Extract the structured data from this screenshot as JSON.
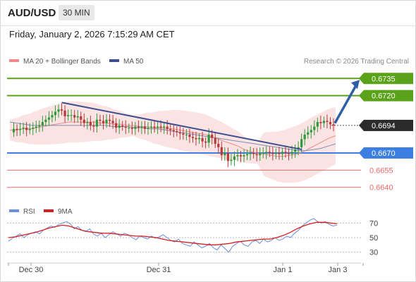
{
  "header": {
    "symbol": "AUD/USD",
    "timeframe": "30 MIN"
  },
  "datetime": "Friday, January 2, 2026 7:15:29 AM CET",
  "legend": {
    "ma20_label": "MA 20 + Bollinger Bands",
    "ma50_label": "MA 50",
    "credit": "Research © 2026 Trading Central",
    "rsi_label": "RSI",
    "rsi_ma_label": "9MA"
  },
  "colors": {
    "resistance": "#5aa21a",
    "support": "#3d7fe0",
    "lower_level": "#e86a6a",
    "ma20": "#f08a8a",
    "bollinger_fill": "#fbdada",
    "ma50": "#7b8fb3",
    "trendline": "#3d4f8e",
    "arrow": "#2e5fa6",
    "candle_up": "#2e9b3a",
    "candle_down": "#b53a3a",
    "rsi": "#6b8fe0",
    "rsi_ma": "#d42020"
  },
  "chart_data": [
    {
      "type": "candlestick",
      "x_ticks": [
        "Dec 30",
        "Dec 31",
        "Jan 1",
        "Jan 3"
      ],
      "ylim": [
        0.663,
        0.6745
      ],
      "current_price": "0.6694",
      "levels": [
        {
          "label": "0.6735",
          "value": 0.6735,
          "kind": "resistance"
        },
        {
          "label": "0.6720",
          "value": 0.672,
          "kind": "resistance"
        },
        {
          "label": "0.6670",
          "value": 0.667,
          "kind": "support"
        },
        {
          "label": "0.6655",
          "value": 0.6655,
          "kind": "lower"
        },
        {
          "label": "0.6640",
          "value": 0.664,
          "kind": "lower"
        }
      ],
      "close_path": [
        0.6688,
        0.6691,
        0.669,
        0.6691,
        0.6692,
        0.669,
        0.6691,
        0.6692,
        0.6693,
        0.6694,
        0.6697,
        0.6699,
        0.6701,
        0.6703,
        0.6706,
        0.6708,
        0.6707,
        0.6702,
        0.6703,
        0.6703,
        0.6701,
        0.6702,
        0.6699,
        0.6696,
        0.6697,
        0.6694,
        0.6693,
        0.6699,
        0.6698,
        0.6696,
        0.6699,
        0.6698,
        0.6696,
        0.6692,
        0.6694,
        0.6693,
        0.6692,
        0.6692,
        0.6691,
        0.6693,
        0.6692,
        0.6693,
        0.6691,
        0.6692,
        0.6693,
        0.6692,
        0.6693,
        0.6692,
        0.6693,
        0.6691,
        0.669,
        0.6689,
        0.6688,
        0.6687,
        0.6686,
        0.6686,
        0.6684,
        0.6683,
        0.6682,
        0.6683,
        0.668,
        0.6679,
        0.6686,
        0.6683,
        0.6678,
        0.6675,
        0.6668,
        0.667,
        0.6663,
        0.6664,
        0.6667,
        0.6668,
        0.6667,
        0.6668,
        0.6669,
        0.667,
        0.6669,
        0.6668,
        0.667,
        0.667,
        0.6671,
        0.667,
        0.6669,
        0.667,
        0.6669,
        0.6671,
        0.667,
        0.6669,
        0.6671,
        0.6673,
        0.6675,
        0.6682,
        0.6686,
        0.6688,
        0.669,
        0.6693,
        0.6697,
        0.6696,
        0.6698,
        0.6697,
        0.6695,
        0.6694
      ],
      "ma20_path": [
        0.669,
        0.669,
        0.6691,
        0.6691,
        0.6692,
        0.6693,
        0.6694,
        0.6695,
        0.6696,
        0.6697,
        0.6697,
        0.6697,
        0.6697,
        0.6697,
        0.6696,
        0.6696,
        0.6695,
        0.6695,
        0.6694,
        0.6694,
        0.6693,
        0.6693,
        0.6692,
        0.6692,
        0.6691,
        0.6691,
        0.669,
        0.6689,
        0.6688,
        0.6687,
        0.6686,
        0.6684,
        0.6682,
        0.668,
        0.6678,
        0.6676,
        0.6673,
        0.6671,
        0.667,
        0.6669,
        0.6668,
        0.6667,
        0.6667,
        0.6668,
        0.6669,
        0.6671,
        0.6674,
        0.6677,
        0.668,
        0.6683,
        0.6685
      ],
      "ma50_path": [
        0.6697,
        0.6696,
        0.6695,
        0.6694,
        0.6694,
        0.6694,
        0.6694,
        0.6694,
        0.6694,
        0.6694,
        0.6694,
        0.6694,
        0.6694,
        0.6694,
        0.6693,
        0.6693,
        0.6693,
        0.6692,
        0.6692,
        0.6691,
        0.6691,
        0.669,
        0.6689,
        0.6688,
        0.6687,
        0.6686,
        0.6685,
        0.6684,
        0.6683,
        0.6682,
        0.6681,
        0.668,
        0.6679,
        0.6678,
        0.6677,
        0.6676,
        0.6675,
        0.6674,
        0.6673,
        0.6672,
        0.6672,
        0.6673,
        0.6674,
        0.6676,
        0.6678
      ]
    },
    {
      "type": "line",
      "title": "RSI",
      "ylim": [
        20,
        80
      ],
      "y_ticks": [
        70,
        50,
        30
      ],
      "series": [
        {
          "name": "RSI",
          "values": [
            45,
            49,
            52,
            55,
            50,
            54,
            56,
            58,
            55,
            60,
            63,
            66,
            64,
            68,
            70,
            72,
            69,
            62,
            65,
            60,
            58,
            62,
            55,
            52,
            56,
            50,
            54,
            58,
            55,
            52,
            56,
            54,
            50,
            47,
            52,
            50,
            48,
            52,
            49,
            51,
            54,
            50,
            46,
            44,
            48,
            42,
            40,
            38,
            44,
            40,
            36,
            38,
            42,
            36,
            33,
            40,
            35,
            30,
            38,
            42,
            45,
            40,
            38,
            44,
            46,
            42,
            48,
            44,
            46,
            50,
            46,
            48,
            52,
            50,
            56,
            60,
            66,
            70,
            74,
            76,
            72,
            70,
            72,
            68,
            66,
            67
          ]
        },
        {
          "name": "9MA",
          "values": [
            50,
            51,
            53,
            55,
            57,
            60,
            63,
            65,
            67,
            66,
            63,
            60,
            58,
            57,
            56,
            56,
            55,
            54,
            53,
            52,
            52,
            51,
            50,
            48,
            46,
            45,
            44,
            43,
            42,
            41,
            40,
            40,
            41,
            42,
            44,
            45,
            46,
            47,
            48,
            48,
            50,
            53,
            57,
            62,
            66,
            69,
            71,
            71,
            70,
            69
          ]
        }
      ]
    }
  ]
}
